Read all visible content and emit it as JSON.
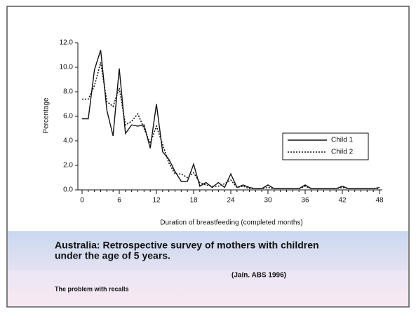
{
  "chart_data": {
    "type": "line",
    "x_label": "Duration of breastfeeding (completed months)",
    "y_label": "Percentage",
    "x": [
      0,
      1,
      2,
      3,
      4,
      5,
      6,
      7,
      8,
      9,
      10,
      11,
      12,
      13,
      14,
      15,
      16,
      17,
      18,
      19,
      20,
      21,
      22,
      23,
      24,
      25,
      26,
      27,
      28,
      29,
      30,
      31,
      32,
      33,
      34,
      35,
      36,
      37,
      38,
      39,
      40,
      41,
      42,
      43,
      44,
      45,
      46,
      47,
      48
    ],
    "series": [
      {
        "name": "Child 1",
        "color": "#111111",
        "dash": "solid",
        "values": [
          5.8,
          5.8,
          9.8,
          11.4,
          6.5,
          4.4,
          9.9,
          4.6,
          5.3,
          5.2,
          5.3,
          3.4,
          7.0,
          3.1,
          2.5,
          1.5,
          0.7,
          0.7,
          2.1,
          0.3,
          0.6,
          0.2,
          0.6,
          0.2,
          1.3,
          0.2,
          0.4,
          0.2,
          0.1,
          0.1,
          0.4,
          0.1,
          0.1,
          0.1,
          0.1,
          0.1,
          0.4,
          0.1,
          0.1,
          0.1,
          0.1,
          0.1,
          0.3,
          0.1,
          0.1,
          0.1,
          0.1,
          0.1,
          0.2
        ]
      },
      {
        "name": "Child 2",
        "color": "#111111",
        "dash": "dotted",
        "values": [
          7.4,
          7.4,
          8.5,
          10.4,
          7.2,
          6.8,
          8.3,
          5.3,
          5.6,
          6.2,
          5.0,
          3.8,
          5.2,
          3.7,
          2.2,
          1.3,
          1.3,
          1.0,
          1.4,
          0.6,
          0.4,
          0.3,
          0.3,
          0.5,
          0.8,
          0.2,
          0.3,
          0.1,
          0.1,
          0.1,
          0.2,
          0.1,
          0.1,
          0.1,
          0.1,
          0.1,
          0.3,
          0.1,
          0.1,
          0.1,
          0.1,
          0.1,
          0.2,
          0.1,
          0.1,
          0.1,
          0.1,
          0.1,
          0.1
        ]
      }
    ],
    "xlim": [
      0,
      48
    ],
    "xticks": [
      0,
      6,
      12,
      18,
      24,
      30,
      36,
      42,
      48
    ],
    "ylim": [
      0,
      12
    ],
    "yticks": [
      {
        "value": 0,
        "label": "0.0"
      },
      {
        "value": 2,
        "label": "2.0"
      },
      {
        "value": 4,
        "label": "4.0"
      },
      {
        "value": 6,
        "label": "6.0"
      },
      {
        "value": 8,
        "label": "8.0"
      },
      {
        "value": 10,
        "label": "10.0"
      },
      {
        "value": 12,
        "label": "12.0"
      }
    ],
    "legend": "right"
  },
  "slide": {
    "caption": [
      "Australia: Retrospective survey of mothers with children",
      "under the age of 5 years."
    ],
    "source": "(Jain. ABS 1996)",
    "note": "The problem with recalls"
  }
}
